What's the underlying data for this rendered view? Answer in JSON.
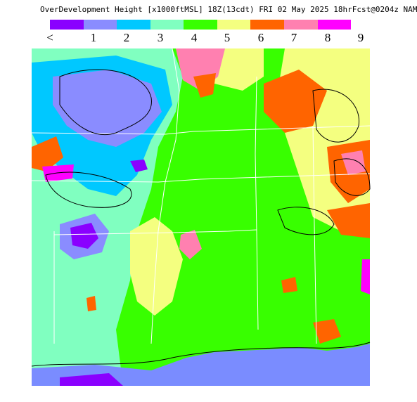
{
  "title": "OverDevelopment Height [x1000ftMSL] 18Z(13cdt) FRI 02 May 2025 18hrFcst@0204z NAM",
  "legend": {
    "colors": [
      "#8a00ff",
      "#8a8cff",
      "#00c8ff",
      "#80ffc0",
      "#38ff00",
      "#f4ff80",
      "#ff6400",
      "#ff80b0",
      "#ff00ff"
    ],
    "labels": [
      "<",
      "1",
      "2",
      "3",
      "4",
      "5",
      "6",
      "7",
      "8",
      "9"
    ]
  },
  "map": {
    "region": "Lower Mississippi Valley / Gulf Coast",
    "ocean_color": "#7a8cff",
    "boundary_color": "#ffffff",
    "contour_color": "#000000"
  }
}
